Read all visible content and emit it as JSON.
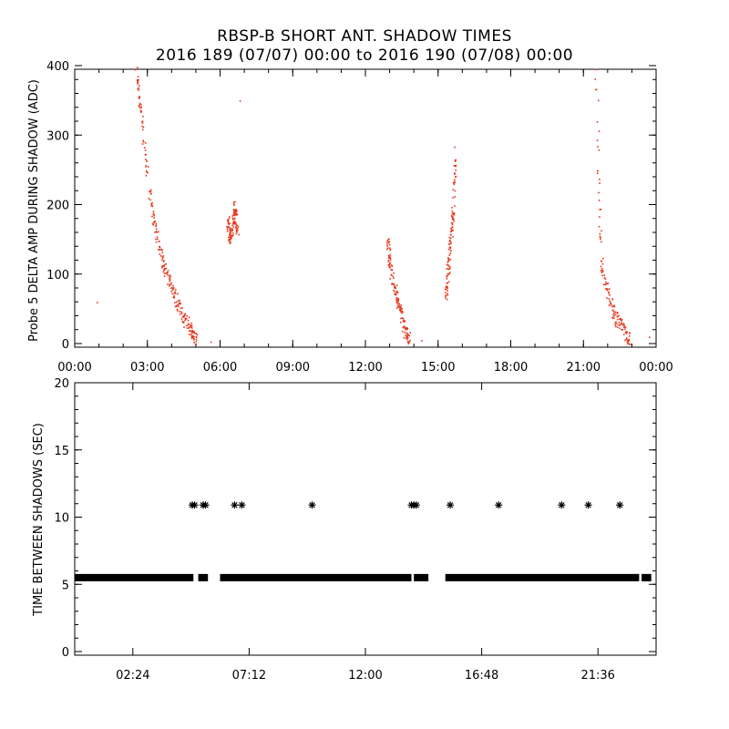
{
  "title": "RBSP-B SHORT ANT. SHADOW TIMES",
  "subtitle": "2016 189 (07/07) 00:00 to 2016 190 (07/08) 00:00",
  "chart_data": [
    {
      "type": "scatter",
      "ylabel": "Probe 5 DELTA AMP DURING SHADOW (ADC)",
      "xlim_hours": [
        0,
        24
      ],
      "ylim": [
        0,
        400
      ],
      "yticks": [
        0,
        100,
        200,
        300,
        400
      ],
      "xtick_labels": [
        "00:00",
        "03:00",
        "06:00",
        "09:00",
        "12:00",
        "15:00",
        "18:00",
        "21:00",
        "00:00"
      ],
      "marker_color": "#e8361c",
      "clusters": [
        {
          "t": [
            2.5,
            2.7,
            3.0,
            3.3,
            3.6,
            3.9,
            4.2,
            4.5,
            4.8,
            5.0
          ],
          "y": [
            400,
            340,
            230,
            170,
            120,
            90,
            60,
            35,
            20,
            5
          ]
        },
        {
          "t": [
            5.6
          ],
          "y": [
            3
          ]
        },
        {
          "t": [
            6.3,
            6.4,
            6.5,
            6.6,
            6.7
          ],
          "y": [
            180,
            150,
            170,
            200,
            160
          ]
        },
        {
          "t": [
            6.8
          ],
          "y": [
            350
          ]
        },
        {
          "t": [
            12.9,
            13.0,
            13.2,
            13.4,
            13.6,
            13.8
          ],
          "y": [
            150,
            110,
            80,
            50,
            20,
            5
          ]
        },
        {
          "t": [
            14.3
          ],
          "y": [
            5
          ]
        },
        {
          "t": [
            15.3,
            15.4,
            15.5,
            15.6,
            15.7
          ],
          "y": [
            70,
            110,
            150,
            190,
            280
          ]
        },
        {
          "t": [
            21.5,
            21.7,
            22.0,
            22.3,
            22.6,
            22.9
          ],
          "y": [
            400,
            120,
            70,
            40,
            20,
            8
          ]
        },
        {
          "t": [
            23.7
          ],
          "y": [
            10
          ]
        },
        {
          "t": [
            0.9
          ],
          "y": [
            60
          ]
        }
      ]
    },
    {
      "type": "scatter",
      "ylabel": "TIME BETWEEN SHADOWS (SEC)",
      "xlim_hours": [
        0,
        24
      ],
      "ylim": [
        0,
        20
      ],
      "yticks": [
        0,
        5,
        10,
        15,
        20
      ],
      "xtick_labels": [
        "02:24",
        "07:12",
        "12:00",
        "16:48",
        "21:36"
      ],
      "xtick_hours": [
        2.4,
        7.2,
        12.0,
        16.8,
        21.6
      ],
      "marker": "asterisk",
      "marker_color": "#000000",
      "baseline_value": 5.5,
      "baseline_segments_hours": [
        [
          0.0,
          4.9
        ],
        [
          5.1,
          5.5
        ],
        [
          6.0,
          13.9
        ],
        [
          14.0,
          14.6
        ],
        [
          15.3,
          23.3
        ],
        [
          23.4,
          23.8
        ]
      ],
      "points": [
        {
          "t": 4.85,
          "y": 10.9
        },
        {
          "t": 4.95,
          "y": 10.9
        },
        {
          "t": 5.3,
          "y": 10.9
        },
        {
          "t": 5.4,
          "y": 10.9
        },
        {
          "t": 6.6,
          "y": 10.9
        },
        {
          "t": 6.9,
          "y": 10.9
        },
        {
          "t": 9.8,
          "y": 10.9
        },
        {
          "t": 13.9,
          "y": 10.9
        },
        {
          "t": 14.0,
          "y": 10.9
        },
        {
          "t": 14.1,
          "y": 10.9
        },
        {
          "t": 15.5,
          "y": 10.9
        },
        {
          "t": 17.5,
          "y": 10.9
        },
        {
          "t": 20.1,
          "y": 10.9
        },
        {
          "t": 21.2,
          "y": 10.9
        },
        {
          "t": 22.5,
          "y": 10.9
        }
      ]
    }
  ]
}
